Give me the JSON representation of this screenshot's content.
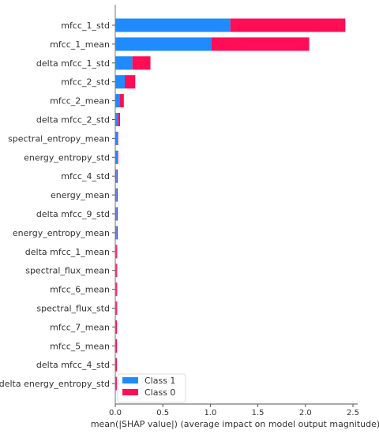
{
  "chart_data": {
    "type": "bar",
    "stacked": true,
    "orientation": "horizontal",
    "title": "",
    "xlabel": "mean(|SHAP value|) (average impact on model output magnitude)",
    "ylabel": "",
    "xlim": [
      0,
      2.55
    ],
    "xticks": [
      0.0,
      0.5,
      1.0,
      1.5,
      2.0,
      2.5
    ],
    "xtick_labels": [
      "0.0",
      "0.5",
      "1.0",
      "1.5",
      "2.0",
      "2.5"
    ],
    "grid": false,
    "legend_position": "bottom-left",
    "categories": [
      "mfcc_1_std",
      "mfcc_1_mean",
      "delta mfcc_1_std",
      "mfcc_2_std",
      "mfcc_2_mean",
      "delta mfcc_2_std",
      "spectral_entropy_mean",
      "energy_entropy_std",
      "mfcc_4_std",
      "energy_mean",
      "delta mfcc_9_std",
      "energy_entropy_mean",
      "delta mfcc_1_mean",
      "spectral_flux_mean",
      "mfcc_6_mean",
      "spectral_flux_std",
      "mfcc_7_mean",
      "mfcc_5_mean",
      "delta mfcc_4_std",
      "delta energy_entropy_std"
    ],
    "series": [
      {
        "name": "Class 1",
        "color": "#1f8bff",
        "values": [
          1.21,
          1.01,
          0.18,
          0.1,
          0.05,
          0.03,
          0.02,
          0.02,
          0.015,
          0.015,
          0.015,
          0.015,
          0.01,
          0.01,
          0.01,
          0.01,
          0.008,
          0.008,
          0.007,
          0.006
        ]
      },
      {
        "name": "Class 0",
        "color": "#ff0d57",
        "values": [
          1.21,
          1.03,
          0.19,
          0.11,
          0.04,
          0.02,
          0.01,
          0.01,
          0.005,
          0.005,
          0.005,
          0.005,
          0.005,
          0.004,
          0.004,
          0.004,
          0.004,
          0.004,
          0.003,
          0.003
        ]
      }
    ]
  }
}
